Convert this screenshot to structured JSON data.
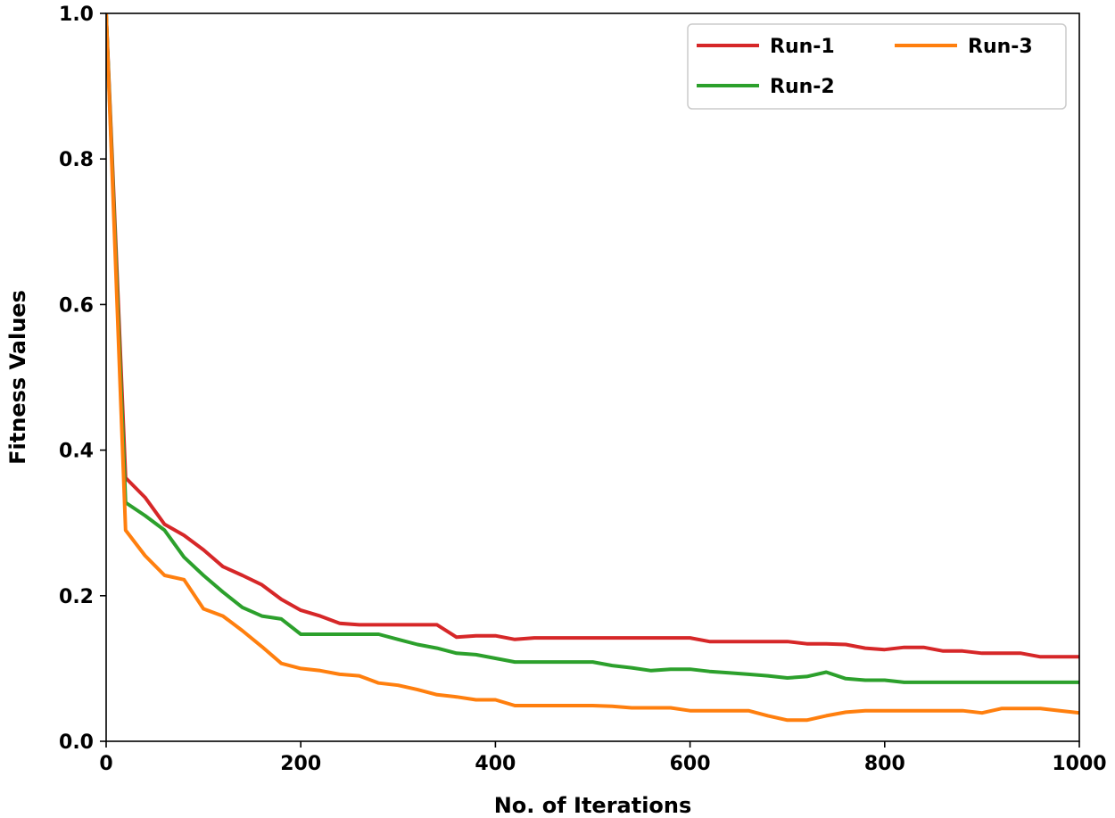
{
  "chart_data": {
    "type": "line",
    "xlabel": "No. of Iterations",
    "ylabel": "Fitness Values",
    "xlim": [
      0,
      1000
    ],
    "ylim": [
      0.0,
      1.0
    ],
    "xticks": [
      0,
      200,
      400,
      600,
      800,
      1000
    ],
    "xtick_labels": [
      "0",
      "200",
      "400",
      "600",
      "800",
      "1000"
    ],
    "yticks": [
      0.0,
      0.2,
      0.4,
      0.6,
      0.8,
      1.0
    ],
    "ytick_labels": [
      "0.0",
      "0.2",
      "0.4",
      "0.6",
      "0.8",
      "1.0"
    ],
    "grid": false,
    "legend_position": "top-right",
    "series": [
      {
        "name": "Run-1",
        "color": "#d62728",
        "points": [
          [
            0,
            1.0
          ],
          [
            20,
            0.362
          ],
          [
            40,
            0.335
          ],
          [
            60,
            0.298
          ],
          [
            80,
            0.283
          ],
          [
            100,
            0.263
          ],
          [
            120,
            0.24
          ],
          [
            140,
            0.228
          ],
          [
            160,
            0.215
          ],
          [
            180,
            0.195
          ],
          [
            200,
            0.18
          ],
          [
            220,
            0.172
          ],
          [
            240,
            0.162
          ],
          [
            260,
            0.16
          ],
          [
            280,
            0.16
          ],
          [
            300,
            0.16
          ],
          [
            320,
            0.16
          ],
          [
            340,
            0.16
          ],
          [
            360,
            0.143
          ],
          [
            380,
            0.145
          ],
          [
            400,
            0.145
          ],
          [
            420,
            0.14
          ],
          [
            440,
            0.142
          ],
          [
            460,
            0.142
          ],
          [
            480,
            0.142
          ],
          [
            500,
            0.142
          ],
          [
            520,
            0.142
          ],
          [
            540,
            0.142
          ],
          [
            560,
            0.142
          ],
          [
            580,
            0.142
          ],
          [
            600,
            0.142
          ],
          [
            620,
            0.137
          ],
          [
            640,
            0.137
          ],
          [
            660,
            0.137
          ],
          [
            680,
            0.137
          ],
          [
            700,
            0.137
          ],
          [
            720,
            0.134
          ],
          [
            740,
            0.134
          ],
          [
            760,
            0.133
          ],
          [
            780,
            0.128
          ],
          [
            800,
            0.126
          ],
          [
            820,
            0.129
          ],
          [
            840,
            0.129
          ],
          [
            860,
            0.124
          ],
          [
            880,
            0.124
          ],
          [
            900,
            0.121
          ],
          [
            920,
            0.121
          ],
          [
            940,
            0.121
          ],
          [
            960,
            0.116
          ],
          [
            980,
            0.116
          ],
          [
            1000,
            0.116
          ]
        ]
      },
      {
        "name": "Run-2",
        "color": "#2ca02c",
        "points": [
          [
            0,
            1.0
          ],
          [
            20,
            0.328
          ],
          [
            40,
            0.31
          ],
          [
            60,
            0.29
          ],
          [
            80,
            0.253
          ],
          [
            100,
            0.228
          ],
          [
            120,
            0.205
          ],
          [
            140,
            0.184
          ],
          [
            160,
            0.172
          ],
          [
            180,
            0.168
          ],
          [
            200,
            0.147
          ],
          [
            220,
            0.147
          ],
          [
            240,
            0.147
          ],
          [
            260,
            0.147
          ],
          [
            280,
            0.147
          ],
          [
            300,
            0.14
          ],
          [
            320,
            0.133
          ],
          [
            340,
            0.128
          ],
          [
            360,
            0.121
          ],
          [
            380,
            0.119
          ],
          [
            400,
            0.114
          ],
          [
            420,
            0.109
          ],
          [
            440,
            0.109
          ],
          [
            460,
            0.109
          ],
          [
            480,
            0.109
          ],
          [
            500,
            0.109
          ],
          [
            520,
            0.104
          ],
          [
            540,
            0.101
          ],
          [
            560,
            0.097
          ],
          [
            580,
            0.099
          ],
          [
            600,
            0.099
          ],
          [
            620,
            0.096
          ],
          [
            640,
            0.094
          ],
          [
            660,
            0.092
          ],
          [
            680,
            0.09
          ],
          [
            700,
            0.087
          ],
          [
            720,
            0.089
          ],
          [
            740,
            0.095
          ],
          [
            760,
            0.086
          ],
          [
            780,
            0.084
          ],
          [
            800,
            0.084
          ],
          [
            820,
            0.081
          ],
          [
            840,
            0.081
          ],
          [
            860,
            0.081
          ],
          [
            880,
            0.081
          ],
          [
            900,
            0.081
          ],
          [
            920,
            0.081
          ],
          [
            940,
            0.081
          ],
          [
            960,
            0.081
          ],
          [
            980,
            0.081
          ],
          [
            1000,
            0.081
          ]
        ]
      },
      {
        "name": "Run-3",
        "color": "#ff7f0e",
        "points": [
          [
            0,
            1.0
          ],
          [
            20,
            0.29
          ],
          [
            40,
            0.255
          ],
          [
            60,
            0.228
          ],
          [
            80,
            0.222
          ],
          [
            100,
            0.182
          ],
          [
            120,
            0.172
          ],
          [
            140,
            0.152
          ],
          [
            160,
            0.13
          ],
          [
            180,
            0.107
          ],
          [
            200,
            0.1
          ],
          [
            220,
            0.097
          ],
          [
            240,
            0.092
          ],
          [
            260,
            0.09
          ],
          [
            280,
            0.08
          ],
          [
            300,
            0.077
          ],
          [
            320,
            0.071
          ],
          [
            340,
            0.064
          ],
          [
            360,
            0.061
          ],
          [
            380,
            0.057
          ],
          [
            400,
            0.057
          ],
          [
            420,
            0.049
          ],
          [
            440,
            0.049
          ],
          [
            460,
            0.049
          ],
          [
            480,
            0.049
          ],
          [
            500,
            0.049
          ],
          [
            520,
            0.048
          ],
          [
            540,
            0.046
          ],
          [
            560,
            0.046
          ],
          [
            580,
            0.046
          ],
          [
            600,
            0.042
          ],
          [
            620,
            0.042
          ],
          [
            640,
            0.042
          ],
          [
            660,
            0.042
          ],
          [
            680,
            0.035
          ],
          [
            700,
            0.029
          ],
          [
            720,
            0.029
          ],
          [
            740,
            0.035
          ],
          [
            760,
            0.04
          ],
          [
            780,
            0.042
          ],
          [
            800,
            0.042
          ],
          [
            820,
            0.042
          ],
          [
            840,
            0.042
          ],
          [
            860,
            0.042
          ],
          [
            880,
            0.042
          ],
          [
            900,
            0.039
          ],
          [
            920,
            0.045
          ],
          [
            940,
            0.045
          ],
          [
            960,
            0.045
          ],
          [
            980,
            0.042
          ],
          [
            1000,
            0.039
          ]
        ]
      }
    ]
  }
}
